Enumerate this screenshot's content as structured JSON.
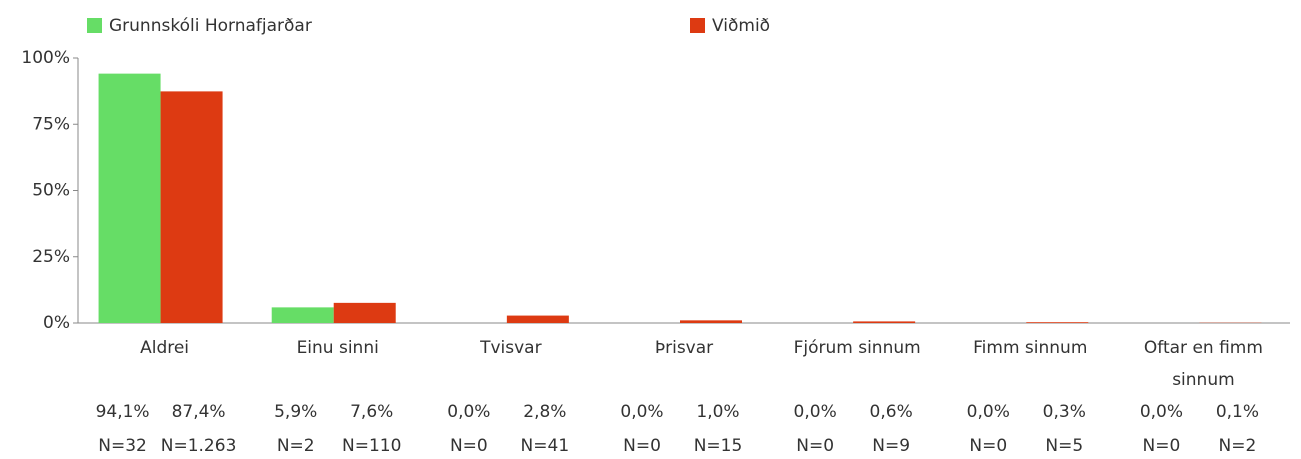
{
  "chart_data": {
    "type": "bar",
    "categories": [
      "Aldrei",
      "Einu sinni",
      "Tvisvar",
      "Þrisvar",
      "Fjórum sinnum",
      "Fimm sinnum",
      "Oftar en fimm sinnum"
    ],
    "series": [
      {
        "name": "Grunnskóli Hornafjarðar",
        "color": "#66dd66",
        "values": [
          94.1,
          5.9,
          0.0,
          0.0,
          0.0,
          0.0,
          0.0
        ],
        "value_labels": [
          "94,1%",
          "5,9%",
          "0,0%",
          "0,0%",
          "0,0%",
          "0,0%",
          "0,0%"
        ],
        "count_labels": [
          "N=32",
          "N=2",
          "N=0",
          "N=0",
          "N=0",
          "N=0",
          "N=0"
        ]
      },
      {
        "name": "Viðmið",
        "color": "#dd3a12",
        "values": [
          87.4,
          7.6,
          2.8,
          1.0,
          0.6,
          0.3,
          0.1
        ],
        "value_labels": [
          "87,4%",
          "7,6%",
          "2,8%",
          "1,0%",
          "0,6%",
          "0,3%",
          "0,1%"
        ],
        "count_labels": [
          "N=1.263",
          "N=110",
          "N=41",
          "N=15",
          "N=9",
          "N=5",
          "N=2"
        ]
      }
    ],
    "ylim": [
      0,
      100
    ],
    "yticks": [
      {
        "value": 0,
        "label": "0%"
      },
      {
        "value": 25,
        "label": "25%"
      },
      {
        "value": 50,
        "label": "50%"
      },
      {
        "value": 75,
        "label": "75%"
      },
      {
        "value": 100,
        "label": "100%"
      }
    ],
    "grid": false,
    "legend": "top"
  }
}
